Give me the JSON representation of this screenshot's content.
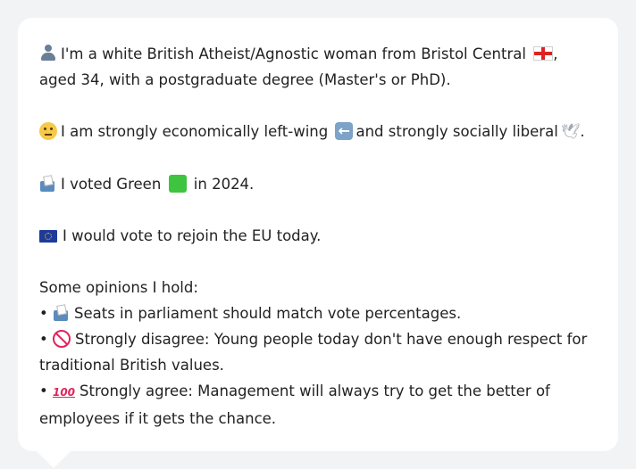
{
  "profile": {
    "intro_text": "I'm a white British Atheist/Agnostic woman from Bristol Central",
    "intro_tail": ", aged 34, with a postgraduate degree (Master's or PhD).",
    "economics_text_a": "I am strongly economically left-wing",
    "economics_text_b": "and strongly socially liberal",
    "economics_text_c": ".",
    "vote_text_a": "I voted Green",
    "vote_text_b": "in 2024.",
    "eu_text": "I would vote to rejoin the EU today.",
    "opinions_heading": "Some opinions I hold:",
    "opinions": [
      {
        "bullet": "•",
        "text": "Seats in parliament should match vote percentages."
      },
      {
        "bullet": "•",
        "text": "Strongly disagree: Young people today don't have enough respect for traditional British values."
      },
      {
        "bullet": "•",
        "text": "Strongly agree: Management will always try to get the better of employees if it gets the chance."
      }
    ]
  },
  "icons": {
    "person": "person-silhouette-icon",
    "england_flag": "england-flag-icon",
    "thinking": "thinking-face-icon",
    "left_arrow": "left-arrow-icon",
    "dove": "dove-icon",
    "ballot": "ballot-box-icon",
    "green_square": "green-square-icon",
    "eu_flag": "eu-flag-icon",
    "prohibited": "prohibited-icon",
    "hundred": "hundred-points-icon"
  },
  "colors": {
    "background": "#f2f3f5",
    "bubble": "#ffffff",
    "text": "#222222"
  }
}
